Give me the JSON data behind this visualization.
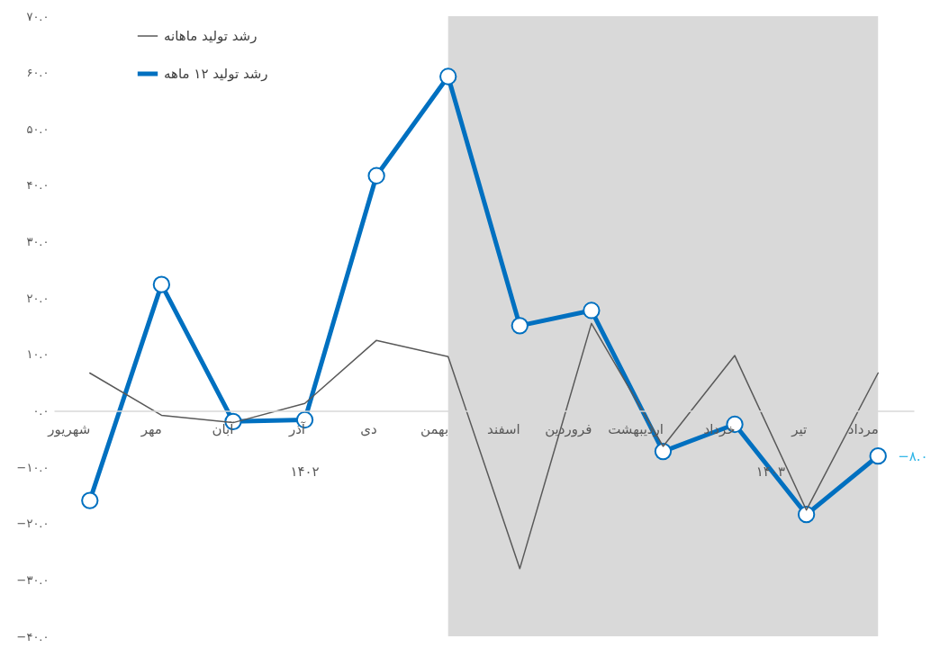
{
  "chart_data": {
    "type": "line",
    "categories": [
      "شهریور",
      "مهر",
      "آبان",
      "آذر",
      "دی",
      "بهمن",
      "اسفند",
      "فروردین",
      "اردیبهشت",
      "خرداد",
      "تیر",
      "مرداد"
    ],
    "series": [
      {
        "name": "رشد تولید ماهانه",
        "color": "#595959",
        "marker": "none",
        "values": [
          6.7,
          -0.8,
          -2.1,
          1.3,
          12.5,
          9.6,
          -28.0,
          15.5,
          -6.3,
          9.8,
          -17.6,
          6.7
        ]
      },
      {
        "name": "رشد تولید ۱۲ ماهه",
        "color": "#0070c0",
        "marker": "circle",
        "values": [
          -15.9,
          22.4,
          -1.9,
          -1.6,
          41.7,
          59.3,
          15.1,
          17.8,
          -7.2,
          -2.4,
          -18.4,
          -8.0
        ],
        "value_labels": [
          null,
          null,
          null,
          null,
          null,
          null,
          null,
          null,
          null,
          null,
          null,
          "−۸.۰"
        ]
      }
    ],
    "ylim": [
      -40,
      70
    ],
    "yticks": [
      {
        "value": -40,
        "label": "−۴۰.۰"
      },
      {
        "value": -30,
        "label": "−۳۰.۰"
      },
      {
        "value": -20,
        "label": "−۲۰.۰"
      },
      {
        "value": -10,
        "label": "−۱۰.۰"
      },
      {
        "value": 0,
        "label": "۰.۰"
      },
      {
        "value": 10,
        "label": "۱۰.۰"
      },
      {
        "value": 20,
        "label": "۲۰.۰"
      },
      {
        "value": 30,
        "label": "۳۰.۰"
      },
      {
        "value": 40,
        "label": "۴۰.۰"
      },
      {
        "value": 50,
        "label": "۵۰.۰"
      },
      {
        "value": 60,
        "label": "۶۰.۰"
      },
      {
        "value": 70,
        "label": "۷۰.۰"
      }
    ],
    "bands": [
      {
        "axis": "x",
        "from": "بهمن",
        "to": "مرداد",
        "color": "#d9d9d9"
      }
    ],
    "annotations": [
      "۱۴۰۲",
      "۱۴۰۳"
    ],
    "grid": false,
    "legend": "top left"
  }
}
